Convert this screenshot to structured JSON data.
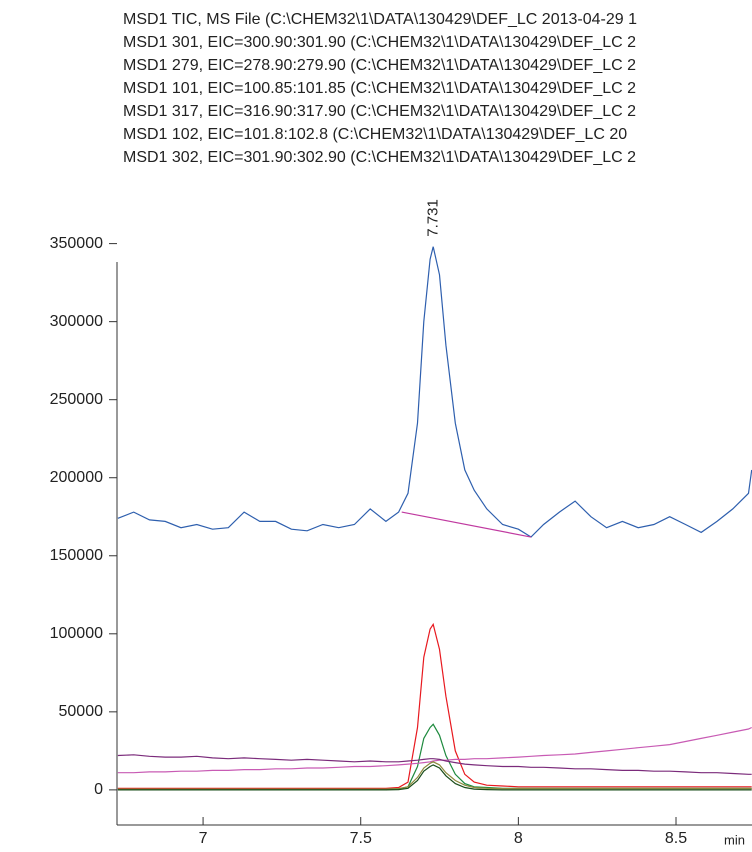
{
  "chart_data": {
    "type": "line",
    "x": [
      6.73,
      6.78,
      6.83,
      6.88,
      6.93,
      6.98,
      7.03,
      7.08,
      7.13,
      7.18,
      7.23,
      7.28,
      7.33,
      7.38,
      7.43,
      7.48,
      7.53,
      7.58,
      7.62,
      7.65,
      7.68,
      7.7,
      7.72,
      7.73,
      7.75,
      7.77,
      7.8,
      7.83,
      7.86,
      7.9,
      7.95,
      8,
      8.04,
      8.08,
      8.13,
      8.18,
      8.23,
      8.28,
      8.33,
      8.38,
      8.43,
      8.48,
      8.53,
      8.58,
      8.63,
      8.68,
      8.73,
      8.74
    ],
    "series": [
      {
        "name": "MSD1 TIC, MS File (C:\\CHEM32\\1\\DATA\\130429\\DEF_LC 2013-04-29 1",
        "color": "#2e5fae",
        "values": [
          174000,
          178000,
          173000,
          172000,
          168000,
          170000,
          167000,
          168000,
          178000,
          172000,
          172000,
          167000,
          166000,
          170000,
          168000,
          170000,
          180000,
          172000,
          178000,
          190000,
          235000,
          300000,
          340000,
          348000,
          330000,
          285000,
          235000,
          205000,
          192000,
          180000,
          170000,
          167000,
          162000,
          170000,
          178000,
          185000,
          175000,
          168000,
          172000,
          168000,
          170000,
          175000,
          170000,
          165000,
          172000,
          180000,
          190000,
          205000
        ]
      },
      {
        "name": "MSD1 301, EIC=300.90:301.90 (C:\\CHEM32\\1\\DATA\\130429\\DEF_LC 2",
        "color": "#e8191f",
        "values": [
          1000,
          1000,
          1000,
          1000,
          1000,
          1000,
          1000,
          1000,
          1000,
          1000,
          1000,
          1000,
          1000,
          1000,
          1000,
          1000,
          1000,
          1000,
          1500,
          5000,
          40000,
          85000,
          103000,
          106000,
          90000,
          60000,
          25000,
          10000,
          5000,
          3000,
          2500,
          2000,
          2000,
          2000,
          2000,
          2000,
          2000,
          2000,
          2000,
          2000,
          2000,
          2000,
          2000,
          2000,
          2000,
          2000,
          2000,
          2000
        ]
      },
      {
        "name": "MSD1 279, EIC=278.90:279.90 (C:\\CHEM32\\1\\DATA\\130429\\DEF_LC 2",
        "color": "#1e8a3e",
        "values": [
          500,
          500,
          500,
          500,
          500,
          500,
          500,
          500,
          500,
          500,
          500,
          500,
          500,
          500,
          500,
          500,
          500,
          500,
          600,
          2000,
          15000,
          33000,
          40000,
          42000,
          35000,
          22000,
          10000,
          4000,
          2000,
          1500,
          1000,
          1000,
          1000,
          1000,
          1000,
          1000,
          1000,
          1000,
          1000,
          1000,
          1000,
          1000,
          1000,
          1000,
          1000,
          1000,
          1000,
          1000
        ]
      },
      {
        "name": "MSD1 101, EIC=100.85:101.85 (C:\\CHEM32\\1\\DATA\\130429\\DEF_LC 2",
        "color": "#c85bb4",
        "values": [
          11000,
          11000,
          11500,
          11500,
          12000,
          12000,
          12500,
          12500,
          13000,
          13000,
          13500,
          13500,
          14000,
          14000,
          14500,
          15000,
          15000,
          15500,
          16000,
          16500,
          17000,
          17500,
          18000,
          18500,
          19000,
          19000,
          19500,
          19500,
          20000,
          20000,
          20500,
          21000,
          21500,
          22000,
          22500,
          23000,
          24000,
          25000,
          26000,
          27000,
          28000,
          29000,
          31000,
          33000,
          35000,
          37000,
          39000,
          40000
        ]
      },
      {
        "name": "MSD1 317, EIC=316.90:317.90 (C:\\CHEM32\\1\\DATA\\130429\\DEF_LC 2",
        "color": "#8c8a3c",
        "values": [
          500,
          500,
          500,
          500,
          500,
          500,
          500,
          500,
          500,
          500,
          500,
          500,
          500,
          500,
          500,
          500,
          500,
          500,
          800,
          2000,
          8000,
          14000,
          17000,
          18000,
          16000,
          11000,
          6000,
          3000,
          1500,
          1000,
          800,
          800,
          800,
          800,
          800,
          800,
          800,
          800,
          800,
          800,
          800,
          800,
          800,
          800,
          800,
          800,
          800,
          800
        ]
      },
      {
        "name": "MSD1 102, EIC=101.8:102.8 (C:\\CHEM32\\1\\DATA\\130429\\DEF_LC 20",
        "color": "#7b2b7b",
        "values": [
          22000,
          22500,
          21500,
          21000,
          21000,
          21500,
          20500,
          20000,
          20500,
          20000,
          19500,
          19000,
          19500,
          19000,
          18500,
          18000,
          18500,
          18000,
          18000,
          18500,
          19000,
          19500,
          20000,
          20000,
          19500,
          18500,
          17500,
          16500,
          16000,
          15500,
          15000,
          15000,
          14500,
          14500,
          14000,
          13500,
          13500,
          13000,
          12500,
          12500,
          12000,
          12000,
          11500,
          11000,
          11000,
          10500,
          10000,
          10000
        ]
      },
      {
        "name": "MSD1 302, EIC=301.90:302.90 (C:\\CHEM32\\1\\DATA\\130429\\DEF_LC 2",
        "color": "#1a4d1a",
        "values": [
          0,
          0,
          0,
          0,
          0,
          0,
          0,
          0,
          0,
          0,
          0,
          0,
          0,
          0,
          0,
          0,
          0,
          0,
          200,
          1000,
          6000,
          12000,
          15000,
          16000,
          14000,
          9000,
          4000,
          1500,
          500,
          200,
          0,
          0,
          0,
          0,
          0,
          0,
          0,
          0,
          0,
          0,
          0,
          0,
          0,
          0,
          0,
          0,
          0,
          0
        ]
      }
    ],
    "baseline": {
      "x": [
        7.63,
        8.04
      ],
      "values": [
        178000,
        162000
      ],
      "color": "#c03aa0"
    },
    "annotations": [
      {
        "text": "7.731",
        "x": 7.731,
        "y": 348000
      }
    ],
    "x_label": "min",
    "xlim": [
      6.727,
      8.741
    ],
    "xticks": [
      7,
      7.5,
      8,
      8.5
    ],
    "ylim": [
      -22500,
      360000
    ],
    "yticks": [
      0,
      50000,
      100000,
      150000,
      200000,
      250000,
      300000,
      350000
    ]
  }
}
